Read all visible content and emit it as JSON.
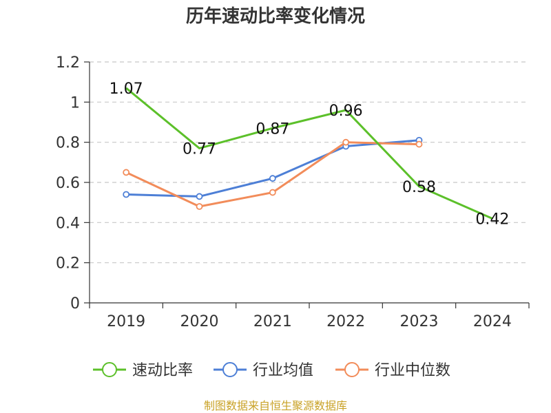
{
  "chart_data": {
    "type": "line",
    "title": "历年速动比率变化情况",
    "categories": [
      "2019",
      "2020",
      "2021",
      "2022",
      "2023",
      "2024"
    ],
    "ylim": [
      0,
      1.2
    ],
    "yticks": [
      "0",
      "0.2",
      "0.4",
      "0.6",
      "0.8",
      "1",
      "1.2"
    ],
    "grid": true,
    "legend_position": "bottom",
    "series": [
      {
        "name": "速动比率",
        "color": "#5cc02a",
        "values": [
          1.07,
          0.77,
          0.87,
          0.96,
          0.58,
          0.42
        ],
        "labels": [
          "1.07",
          "0.77",
          "0.87",
          "0.96",
          "0.58",
          "0.42"
        ],
        "show_markers": false
      },
      {
        "name": "行业均值",
        "color": "#4d7fd6",
        "values": [
          0.54,
          0.53,
          0.62,
          0.78,
          0.81,
          null
        ],
        "show_markers": true
      },
      {
        "name": "行业中位数",
        "color": "#f28c5a",
        "values": [
          0.65,
          0.48,
          0.55,
          0.8,
          0.79,
          null
        ],
        "show_markers": true
      }
    ]
  },
  "footer": {
    "source": "制图数据来自恒生聚源数据库"
  }
}
